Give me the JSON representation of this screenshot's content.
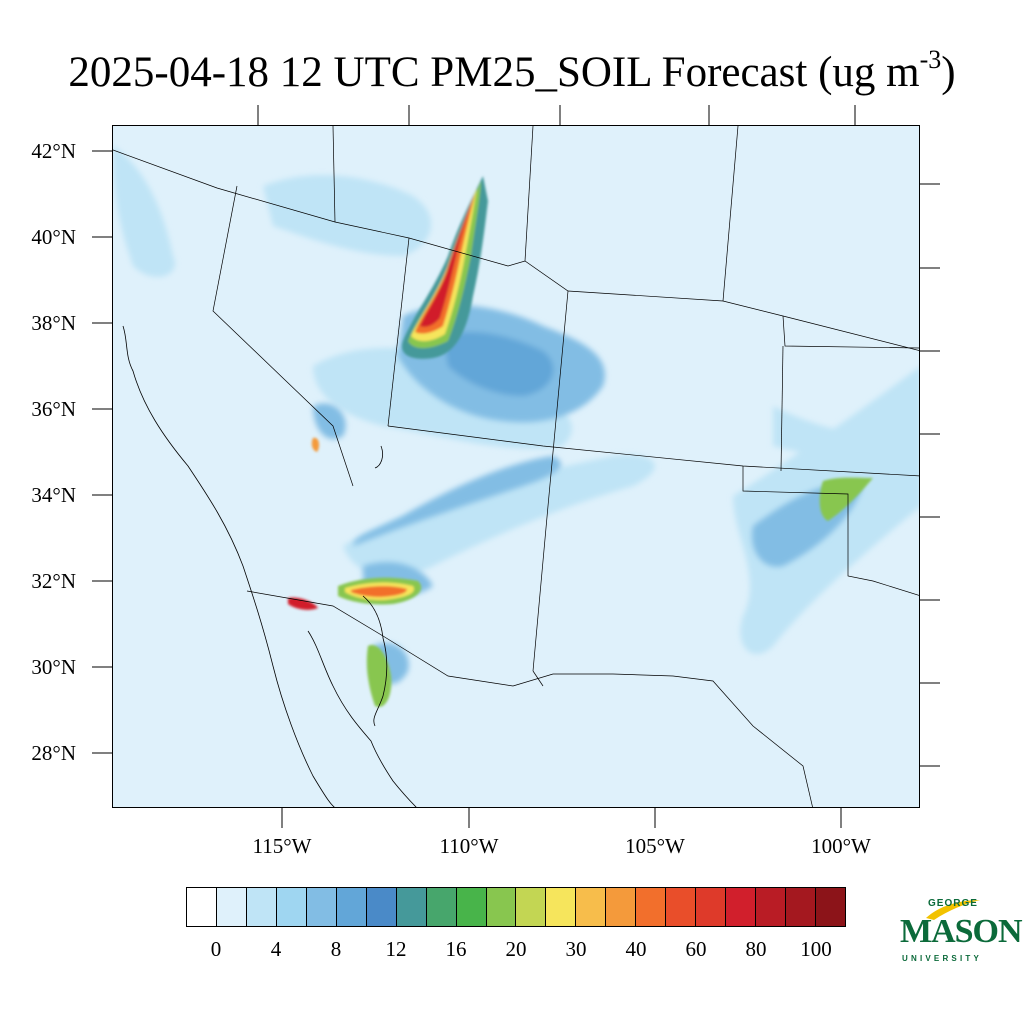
{
  "title": {
    "main": "2025-04-18 12 UTC PM25_SOIL Forecast (ug m",
    "exponent": "-3",
    "close": ")"
  },
  "lat_labels": [
    "42°N",
    "40°N",
    "38°N",
    "36°N",
    "34°N",
    "32°N",
    "30°N",
    "28°N"
  ],
  "lon_labels": [
    "115°W",
    "110°W",
    "105°W",
    "100°W"
  ],
  "colorbar": {
    "labels": [
      "0",
      "4",
      "8",
      "12",
      "16",
      "20",
      "30",
      "40",
      "60",
      "80",
      "100"
    ],
    "colors": [
      "#ffffff",
      "#dff1fb",
      "#bfe4f6",
      "#9fd6f1",
      "#82bde4",
      "#62a6d8",
      "#4a8ac8",
      "#45999a",
      "#47a66c",
      "#48b44a",
      "#88c64f",
      "#c3d653",
      "#f6e55c",
      "#f7bd4b",
      "#f49a3b",
      "#f26f2c",
      "#e94e2a",
      "#de3a2a",
      "#d11f2c",
      "#b91c25",
      "#a4181f",
      "#8c1419"
    ]
  },
  "logo": {
    "george": "GEORGE",
    "mason": "MASON",
    "university": "UNIVERSITY"
  }
}
